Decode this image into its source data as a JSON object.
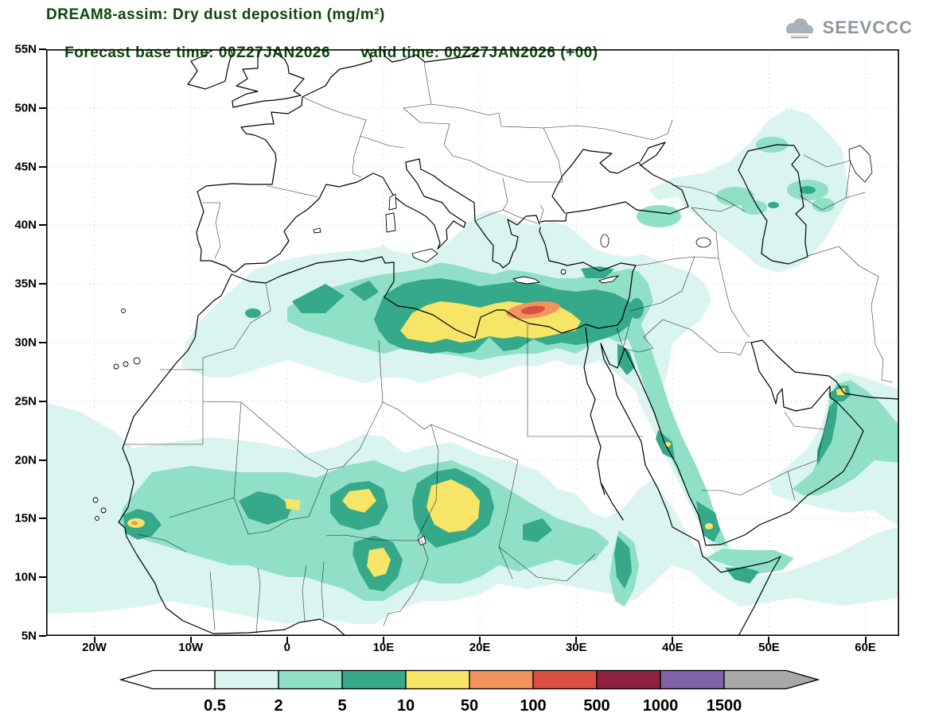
{
  "header": {
    "title": "DREAM8-assim: Dry dust deposition (mg/m²)",
    "forecast_base": "Forecast base time: 00Z27JAN2026",
    "valid_time": "valid time: 00Z27JAN2026 (+00)",
    "title_color": "#0b470b"
  },
  "logo": {
    "text": "SEEVCCC"
  },
  "map": {
    "lat_ticks": [
      "55N",
      "50N",
      "45N",
      "40N",
      "35N",
      "30N",
      "25N",
      "20N",
      "15N",
      "10N",
      "5N"
    ],
    "lon_ticks": [
      "20W",
      "10W",
      "0",
      "10E",
      "20E",
      "30E",
      "40E",
      "50E",
      "60E"
    ]
  },
  "legend": {
    "labels": [
      "0.5",
      "2",
      "5",
      "10",
      "50",
      "100",
      "500",
      "1000",
      "1500"
    ],
    "colors": [
      "#daf4ef",
      "#8fe0c6",
      "#35a989",
      "#f6e567",
      "#f0935e",
      "#da4f41",
      "#8e2040",
      "#7f62a8"
    ],
    "under_color": "#ffffff",
    "over_color": "#a8a8a8"
  },
  "chart_data": {
    "type": "heatmap",
    "title": "DREAM8-assim: Dry dust deposition (mg/m²)",
    "variable": "Dry dust deposition",
    "units": "mg/m²",
    "model": "DREAM8-assim",
    "base_time": "00Z27JAN2026",
    "valid_time": "00Z27JAN2026",
    "lead": "+00",
    "levels_mg_m2": [
      0.5,
      2,
      5,
      10,
      50,
      100,
      500,
      1000,
      1500
    ],
    "legend_position": "bottom",
    "grid": true,
    "notes": "Filled contours over N Africa, Sahel, Middle East; maxima >100 mg/m² off NE Libya coast"
  }
}
